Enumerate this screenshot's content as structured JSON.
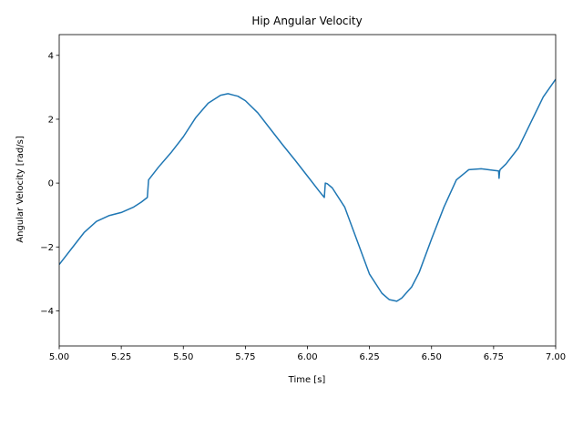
{
  "chart_data": {
    "type": "line",
    "title": "Hip Angular Velocity",
    "xlabel": "Time [s]",
    "ylabel": "Angular Velocity [rad/s]",
    "xlim": [
      5.0,
      7.0
    ],
    "ylim": [
      -5.1,
      4.65
    ],
    "x_ticks": [
      5.0,
      5.25,
      5.5,
      5.75,
      6.0,
      6.25,
      6.5,
      6.75,
      7.0
    ],
    "x_tick_labels": [
      "5.00",
      "5.25",
      "5.50",
      "5.75",
      "6.00",
      "6.25",
      "6.50",
      "6.75",
      "7.00"
    ],
    "y_ticks": [
      -4,
      -2,
      0,
      2,
      4
    ],
    "y_tick_labels": [
      "−4",
      "−2",
      "0",
      "2",
      "4"
    ],
    "grid": false,
    "legend": "none",
    "series": [
      {
        "color": "#1f77b4",
        "x": [
          5.0,
          5.05,
          5.1,
          5.15,
          5.2,
          5.25,
          5.3,
          5.33,
          5.355,
          5.36,
          5.365,
          5.4,
          5.45,
          5.5,
          5.55,
          5.6,
          5.65,
          5.68,
          5.72,
          5.75,
          5.8,
          5.85,
          5.9,
          5.95,
          6.0,
          6.05,
          6.068,
          6.072,
          6.08,
          6.1,
          6.15,
          6.2,
          6.25,
          6.3,
          6.33,
          6.36,
          6.38,
          6.42,
          6.45,
          6.5,
          6.55,
          6.6,
          6.65,
          6.7,
          6.75,
          6.77,
          6.772,
          6.774,
          6.776,
          6.78,
          6.8,
          6.85,
          6.9,
          6.95,
          7.0
        ],
        "y": [
          -2.55,
          -2.05,
          -1.55,
          -1.2,
          -1.02,
          -0.92,
          -0.75,
          -0.6,
          -0.45,
          0.1,
          0.15,
          0.5,
          0.95,
          1.45,
          2.05,
          2.5,
          2.75,
          2.8,
          2.72,
          2.58,
          2.2,
          1.7,
          1.2,
          0.72,
          0.22,
          -0.28,
          -0.45,
          0.0,
          -0.02,
          -0.15,
          -0.75,
          -1.8,
          -2.85,
          -3.45,
          -3.65,
          -3.7,
          -3.6,
          -3.25,
          -2.8,
          -1.75,
          -0.75,
          0.1,
          0.42,
          0.45,
          0.4,
          0.38,
          0.15,
          0.35,
          0.42,
          0.45,
          0.6,
          1.1,
          1.9,
          2.7,
          3.25
        ]
      }
    ]
  }
}
